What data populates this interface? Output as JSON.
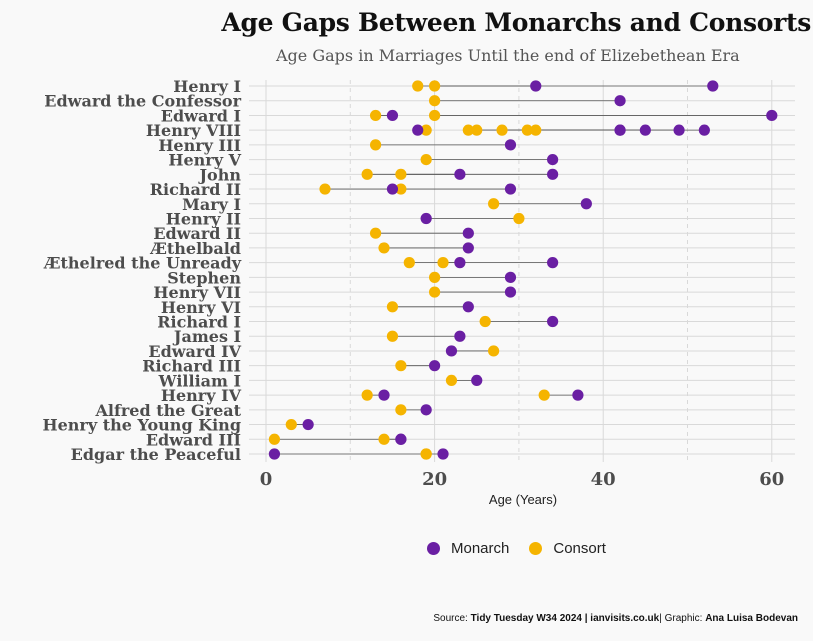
{
  "title": "Age Gaps Between Monarchs and Consorts",
  "subtitle": "Age Gaps in Marriages Until the end of Elizebethean Era",
  "legend": {
    "monarch_label": "Monarch",
    "consort_label": "Consort"
  },
  "caption": {
    "source_label": "Source: ",
    "source_value": "Tidy Tuesday W34 2024 | ianvisits.co.uk",
    "graphic_label": "| Graphic: ",
    "graphic_value": "Ana Luisa Bodevan"
  },
  "colors": {
    "monarch": "#6a1fa3",
    "consort": "#f5b400",
    "segment": "#555555",
    "grid": "#d9d9d9",
    "label": "#4d4d4d"
  },
  "chart_data": {
    "type": "dumbbell",
    "title": "Age Gaps Between Monarchs and Consorts",
    "subtitle": "Age Gaps in Marriages Until the end of Elizebethean Era",
    "xlabel": "Age (Years)",
    "ylabel": "",
    "xlim": [
      0,
      62
    ],
    "x_ticks": [
      0,
      20,
      40,
      60
    ],
    "grid": true,
    "legend_position": "bottom",
    "series_names": [
      "Monarch",
      "Consort"
    ],
    "rows": [
      {
        "name": "Henry I",
        "pairs": [
          [
            32,
            18
          ],
          [
            53,
            20
          ]
        ]
      },
      {
        "name": "Edward the Confessor",
        "pairs": [
          [
            42,
            20
          ]
        ]
      },
      {
        "name": "Edward I",
        "pairs": [
          [
            15,
            13
          ],
          [
            60,
            20
          ]
        ]
      },
      {
        "name": "Henry VIII",
        "pairs": [
          [
            18,
            19
          ],
          [
            42,
            24
          ],
          [
            45,
            25
          ],
          [
            49,
            28
          ],
          [
            52,
            31
          ],
          [
            42,
            32
          ]
        ]
      },
      {
        "name": "Henry III",
        "pairs": [
          [
            29,
            13
          ]
        ]
      },
      {
        "name": "Henry V",
        "pairs": [
          [
            34,
            19
          ]
        ]
      },
      {
        "name": "John",
        "pairs": [
          [
            23,
            12
          ],
          [
            34,
            16
          ]
        ]
      },
      {
        "name": "Richard II",
        "pairs": [
          [
            15,
            16
          ],
          [
            29,
            7
          ]
        ]
      },
      {
        "name": "Mary I",
        "pairs": [
          [
            38,
            27
          ]
        ]
      },
      {
        "name": "Henry II",
        "pairs": [
          [
            19,
            30
          ]
        ]
      },
      {
        "name": "Edward II",
        "pairs": [
          [
            24,
            13
          ]
        ]
      },
      {
        "name": "Æthelbald",
        "pairs": [
          [
            24,
            14
          ]
        ]
      },
      {
        "name": "Æthelred the Unready",
        "pairs": [
          [
            23,
            21
          ],
          [
            34,
            17
          ]
        ]
      },
      {
        "name": "Stephen",
        "pairs": [
          [
            29,
            20
          ]
        ]
      },
      {
        "name": "Henry VII",
        "pairs": [
          [
            29,
            20
          ]
        ]
      },
      {
        "name": "Henry VI",
        "pairs": [
          [
            24,
            15
          ]
        ]
      },
      {
        "name": "Richard I",
        "pairs": [
          [
            34,
            26
          ]
        ]
      },
      {
        "name": "James I",
        "pairs": [
          [
            23,
            15
          ]
        ]
      },
      {
        "name": "Edward IV",
        "pairs": [
          [
            22,
            27
          ]
        ]
      },
      {
        "name": "Richard III",
        "pairs": [
          [
            20,
            16
          ]
        ]
      },
      {
        "name": "William I",
        "pairs": [
          [
            25,
            22
          ]
        ]
      },
      {
        "name": "Henry IV",
        "pairs": [
          [
            14,
            12
          ],
          [
            37,
            33
          ]
        ]
      },
      {
        "name": "Alfred the Great",
        "pairs": [
          [
            19,
            16
          ]
        ]
      },
      {
        "name": "Henry the Young King",
        "pairs": [
          [
            5,
            3
          ]
        ]
      },
      {
        "name": "Edward III",
        "pairs": [
          [
            16,
            14
          ],
          [
            16,
            1
          ]
        ]
      },
      {
        "name": "Edgar the Peaceful",
        "pairs": [
          [
            1,
            19
          ],
          [
            21,
            19
          ]
        ]
      }
    ]
  }
}
